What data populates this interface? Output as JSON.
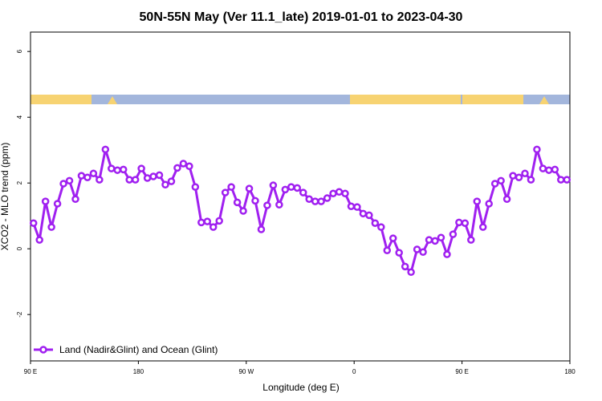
{
  "chart_data": {
    "type": "line",
    "title": "50N-55N May (Ver 11.1_late)   2019-01-01 to 2023-04-30",
    "x_label": "Longitude (deg E)",
    "y_label": "XCO2 - MLO trend (ppm)",
    "xlim": [
      90,
      540
    ],
    "ylim": [
      -3.41,
      6.59
    ],
    "xticks": [
      {
        "value": 90,
        "label": "90 E"
      },
      180,
      {
        "value": 270,
        "label": "90 W"
      },
      {
        "value": 360,
        "label": "0"
      },
      {
        "value": 450,
        "label": "90 E"
      },
      {
        "value": 540,
        "label": "180"
      }
    ],
    "yticks": [
      -2,
      0,
      2,
      4,
      6
    ],
    "legend": "bottom-left",
    "x": [
      92.5,
      97.5,
      102.5,
      107.5,
      112.5,
      117.5,
      122.5,
      127.5,
      132.5,
      137.5,
      142.5,
      147.5,
      152.5,
      157.5,
      162.5,
      167.5,
      172.5,
      177.5,
      182.5,
      187.5,
      192.5,
      197.5,
      202.5,
      207.5,
      212.5,
      217.5,
      222.5,
      227.5,
      232.5,
      237.5,
      242.5,
      247.5,
      252.5,
      257.5,
      262.5,
      267.5,
      272.5,
      277.5,
      282.5,
      287.5,
      292.5,
      297.5,
      302.5,
      307.5,
      312.5,
      317.5,
      322.5,
      327.5,
      332.5,
      337.5,
      342.5,
      347.5,
      352.5,
      357.5,
      362.5,
      367.5,
      372.5,
      377.5,
      382.5,
      387.5,
      392.5,
      397.5,
      402.5,
      407.5,
      412.5,
      417.5,
      422.5,
      427.5,
      432.5,
      437.5,
      442.5,
      447.5,
      452.5,
      457.5,
      462.5,
      467.5,
      472.5,
      477.5,
      482.5,
      487.5,
      492.5,
      497.5,
      502.5,
      507.5,
      512.5,
      517.5,
      522.5,
      527.5,
      532.5,
      537.5
    ],
    "series": [
      {
        "name": "Land (Nadir&Glint) and Ocean (Glint)",
        "color": "#a020f0",
        "values": [
          0.78,
          0.27,
          1.44,
          0.66,
          1.37,
          1.98,
          2.07,
          1.51,
          2.22,
          2.17,
          2.29,
          2.1,
          3.02,
          2.44,
          2.39,
          2.41,
          2.1,
          2.1,
          2.44,
          2.15,
          2.2,
          2.24,
          1.95,
          2.05,
          2.46,
          2.59,
          2.51,
          1.88,
          0.8,
          0.83,
          0.66,
          0.85,
          1.71,
          1.88,
          1.41,
          1.15,
          1.83,
          1.46,
          0.59,
          1.32,
          1.93,
          1.34,
          1.8,
          1.88,
          1.85,
          1.71,
          1.51,
          1.44,
          1.44,
          1.54,
          1.68,
          1.73,
          1.68,
          1.29,
          1.27,
          1.07,
          1.02,
          0.78,
          0.66,
          -0.05,
          0.32,
          -0.12,
          -0.54,
          -0.71,
          -0.02,
          -0.1,
          0.27,
          0.24,
          0.34,
          -0.17,
          0.44,
          0.8,
          0.78,
          0.27,
          1.44,
          0.66,
          1.37,
          1.98,
          2.07,
          1.51,
          2.22,
          2.17,
          2.29,
          2.1,
          3.02,
          2.44,
          2.39,
          2.41,
          2.1,
          2.1
        ]
      }
    ]
  }
}
